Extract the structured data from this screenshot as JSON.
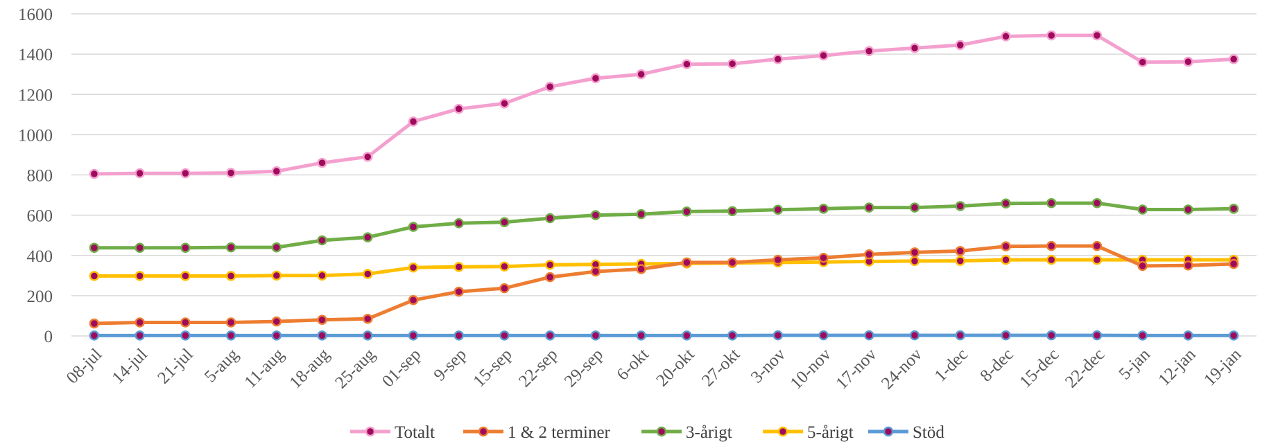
{
  "chart_data": {
    "type": "line",
    "title": "",
    "xlabel": "",
    "ylabel": "",
    "ylim": [
      0,
      1600
    ],
    "yticks": [
      0,
      200,
      400,
      600,
      800,
      1000,
      1200,
      1400,
      1600
    ],
    "grid": "horizontal",
    "legend_position": "bottom",
    "categories": [
      "08-jul",
      "14-jul",
      "21-jul",
      "5-aug",
      "11-aug",
      "18-aug",
      "25-aug",
      "01-sep",
      "9-sep",
      "15-sep",
      "22-sep",
      "29-sep",
      "6-okt",
      "20-okt",
      "27-okt",
      "3-nov",
      "10-nov",
      "17-nov",
      "24-nov",
      "1-dec",
      "8-dec",
      "15-dec",
      "22-dec",
      "5-jan",
      "12-jan",
      "19-jan"
    ],
    "marker_color": "#9e0b5c",
    "series": [
      {
        "name": "Totalt",
        "color": "#f4a0cf",
        "values": [
          805,
          808,
          808,
          810,
          818,
          860,
          890,
          1065,
          1128,
          1155,
          1238,
          1280,
          1300,
          1350,
          1352,
          1375,
          1393,
          1415,
          1430,
          1445,
          1488,
          1493,
          1493,
          1360,
          1362,
          1375
        ]
      },
      {
        "name": "1 & 2 terminer",
        "color": "#ed7d31",
        "values": [
          62,
          67,
          67,
          67,
          72,
          80,
          85,
          178,
          220,
          237,
          292,
          320,
          332,
          365,
          365,
          378,
          388,
          405,
          415,
          422,
          445,
          447,
          447,
          348,
          350,
          358
        ]
      },
      {
        "name": "3-årigt",
        "color": "#70ad47",
        "values": [
          438,
          438,
          438,
          440,
          440,
          475,
          490,
          542,
          560,
          565,
          585,
          600,
          605,
          618,
          620,
          627,
          632,
          638,
          638,
          645,
          658,
          660,
          660,
          628,
          628,
          632
        ]
      },
      {
        "name": "5-årigt",
        "color": "#ffc000",
        "values": [
          298,
          298,
          298,
          298,
          300,
          300,
          308,
          340,
          343,
          345,
          353,
          355,
          358,
          360,
          362,
          365,
          367,
          370,
          372,
          373,
          378,
          378,
          378,
          378,
          378,
          378
        ]
      },
      {
        "name": "Stöd",
        "color": "#5b9bd5",
        "values": [
          2,
          2,
          2,
          2,
          2,
          2,
          2,
          2,
          2,
          2,
          2,
          2,
          2,
          2,
          2,
          3,
          3,
          3,
          3,
          3,
          3,
          3,
          3,
          2,
          2,
          2
        ]
      }
    ]
  }
}
